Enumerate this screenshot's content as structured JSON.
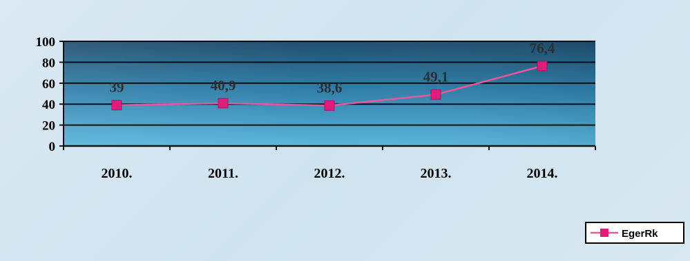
{
  "chart_data": {
    "type": "line",
    "title": "",
    "xlabel": "",
    "ylabel": "",
    "categories": [
      "2010.",
      "2011.",
      "2012.",
      "2013.",
      "2014."
    ],
    "series": [
      {
        "name": "EgerRk",
        "values": [
          39,
          40.9,
          38.6,
          49.1,
          76.4
        ]
      }
    ],
    "data_labels": [
      "39",
      "40,9",
      "38,6",
      "49,1",
      "76,4"
    ],
    "y_ticks": [
      "0",
      "20",
      "40",
      "60",
      "80",
      "100"
    ],
    "ylim": [
      0,
      100
    ],
    "grid": true,
    "legend": "bottom-right",
    "colors": {
      "line": "#e8579a",
      "marker": "#e01d7a",
      "plot_top": "#1f4f6e",
      "plot_bottom": "#59b6da",
      "gridline": "#0a0f18"
    }
  }
}
